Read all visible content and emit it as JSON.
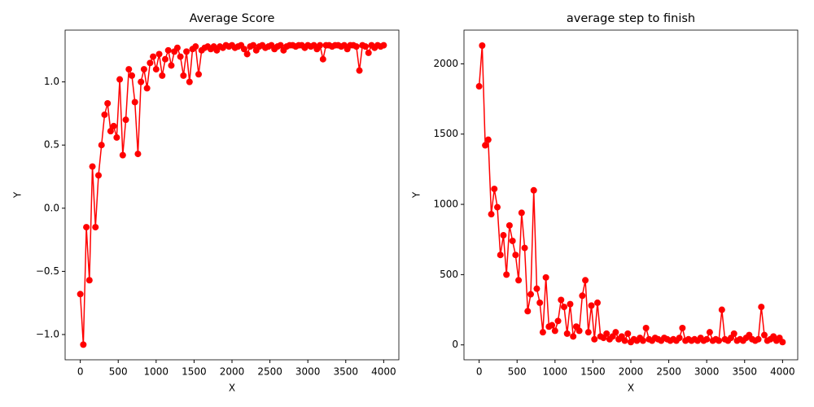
{
  "chart_data": [
    {
      "type": "line",
      "title": "Average Score",
      "x_label": "X",
      "y_label": "Y",
      "color": "#ff0000",
      "x": [
        0,
        40,
        80,
        120,
        160,
        200,
        240,
        280,
        320,
        360,
        400,
        440,
        480,
        520,
        560,
        600,
        640,
        680,
        720,
        760,
        800,
        840,
        880,
        920,
        960,
        1000,
        1040,
        1080,
        1120,
        1160,
        1200,
        1240,
        1280,
        1320,
        1360,
        1400,
        1440,
        1480,
        1520,
        1560,
        1600,
        1640,
        1680,
        1720,
        1760,
        1800,
        1840,
        1880,
        1920,
        1960,
        2000,
        2040,
        2080,
        2120,
        2160,
        2200,
        2240,
        2280,
        2320,
        2360,
        2400,
        2440,
        2480,
        2520,
        2560,
        2600,
        2640,
        2680,
        2720,
        2760,
        2800,
        2840,
        2880,
        2920,
        2960,
        3000,
        3040,
        3080,
        3120,
        3160,
        3200,
        3240,
        3280,
        3320,
        3360,
        3400,
        3440,
        3480,
        3520,
        3560,
        3600,
        3640,
        3680,
        3720,
        3760,
        3800,
        3840,
        3880,
        3920,
        3960,
        4000
      ],
      "values": [
        -0.68,
        -1.08,
        -0.15,
        -0.57,
        0.33,
        -0.15,
        0.26,
        0.5,
        0.74,
        0.83,
        0.61,
        0.65,
        0.56,
        1.02,
        0.42,
        0.7,
        1.1,
        1.05,
        0.84,
        0.43,
        1.0,
        1.1,
        0.95,
        1.15,
        1.2,
        1.1,
        1.22,
        1.05,
        1.18,
        1.25,
        1.13,
        1.24,
        1.27,
        1.2,
        1.05,
        1.24,
        1.0,
        1.26,
        1.28,
        1.06,
        1.25,
        1.27,
        1.28,
        1.26,
        1.28,
        1.25,
        1.28,
        1.27,
        1.29,
        1.28,
        1.29,
        1.27,
        1.28,
        1.29,
        1.26,
        1.22,
        1.28,
        1.29,
        1.25,
        1.28,
        1.29,
        1.27,
        1.28,
        1.29,
        1.26,
        1.28,
        1.29,
        1.25,
        1.28,
        1.29,
        1.29,
        1.28,
        1.29,
        1.29,
        1.27,
        1.29,
        1.28,
        1.29,
        1.26,
        1.29,
        1.18,
        1.29,
        1.29,
        1.28,
        1.29,
        1.29,
        1.28,
        1.29,
        1.26,
        1.29,
        1.29,
        1.28,
        1.09,
        1.29,
        1.28,
        1.23,
        1.29,
        1.27,
        1.29,
        1.28,
        1.29
      ],
      "xlim": [
        -200,
        4200
      ],
      "xticks": [
        0,
        500,
        1000,
        1500,
        2000,
        2500,
        3000,
        3500,
        4000
      ],
      "ylim": [
        -1.2,
        1.41
      ],
      "yticks": [
        {
          "value": -1.0,
          "label": "−1.0"
        },
        {
          "value": -0.5,
          "label": "−0.5"
        },
        {
          "value": 0,
          "label": "0.0"
        },
        0.5,
        {
          "value": 1.0,
          "label": "1.0"
        }
      ]
    },
    {
      "type": "line",
      "title": "average step to finish",
      "x_label": "X",
      "y_label": "Y",
      "color": "#ff0000",
      "x": [
        0,
        40,
        80,
        120,
        160,
        200,
        240,
        280,
        320,
        360,
        400,
        440,
        480,
        520,
        560,
        600,
        640,
        680,
        720,
        760,
        800,
        840,
        880,
        920,
        960,
        1000,
        1040,
        1080,
        1120,
        1160,
        1200,
        1240,
        1280,
        1320,
        1360,
        1400,
        1440,
        1480,
        1520,
        1560,
        1600,
        1640,
        1680,
        1720,
        1760,
        1800,
        1840,
        1880,
        1920,
        1960,
        2000,
        2040,
        2080,
        2120,
        2160,
        2200,
        2240,
        2280,
        2320,
        2360,
        2400,
        2440,
        2480,
        2520,
        2560,
        2600,
        2640,
        2680,
        2720,
        2760,
        2800,
        2840,
        2880,
        2920,
        2960,
        3000,
        3040,
        3080,
        3120,
        3160,
        3200,
        3240,
        3280,
        3320,
        3360,
        3400,
        3440,
        3480,
        3520,
        3560,
        3600,
        3640,
        3680,
        3720,
        3760,
        3800,
        3840,
        3880,
        3920,
        3960,
        4000
      ],
      "values": [
        1840,
        2130,
        1420,
        1460,
        930,
        1110,
        980,
        640,
        780,
        500,
        850,
        740,
        640,
        460,
        940,
        690,
        240,
        360,
        1100,
        400,
        300,
        90,
        480,
        130,
        140,
        100,
        170,
        320,
        270,
        80,
        290,
        60,
        130,
        100,
        350,
        460,
        90,
        280,
        40,
        300,
        60,
        50,
        80,
        40,
        60,
        90,
        40,
        60,
        30,
        80,
        20,
        40,
        30,
        50,
        30,
        120,
        40,
        30,
        50,
        40,
        30,
        50,
        40,
        30,
        40,
        30,
        50,
        120,
        30,
        40,
        30,
        40,
        30,
        50,
        30,
        40,
        90,
        30,
        40,
        30,
        250,
        40,
        30,
        50,
        80,
        30,
        40,
        30,
        50,
        70,
        40,
        30,
        40,
        270,
        70,
        30,
        40,
        60,
        30,
        50,
        20
      ],
      "xlim": [
        -200,
        4200
      ],
      "xticks": [
        0,
        500,
        1000,
        1500,
        2000,
        2500,
        3000,
        3500,
        4000
      ],
      "ylim": [
        -106,
        2240
      ],
      "yticks": [
        0,
        500,
        1000,
        1500,
        2000
      ]
    }
  ]
}
